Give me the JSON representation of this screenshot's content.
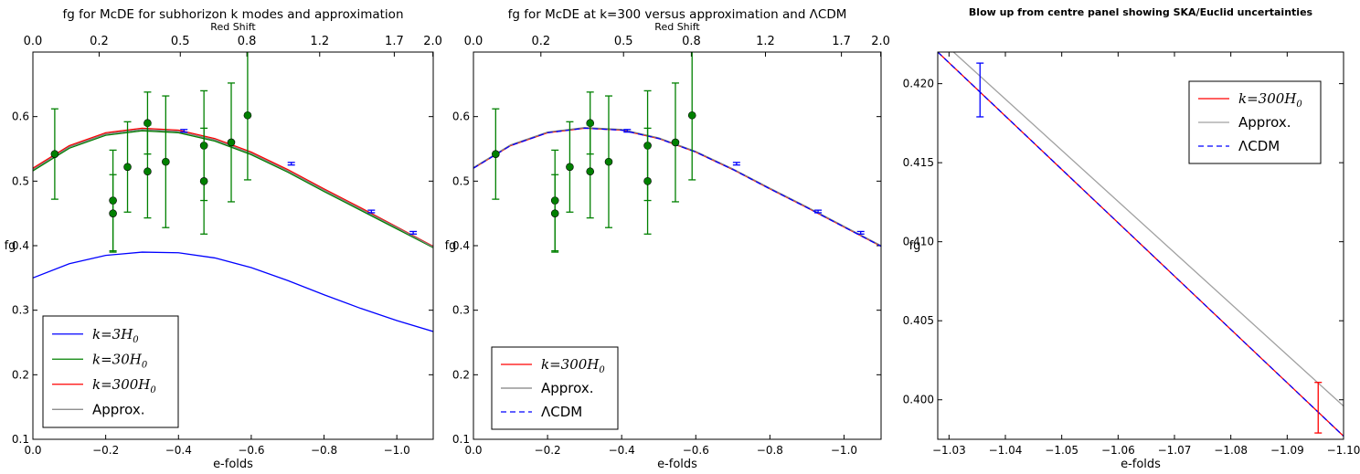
{
  "chart_data": [
    {
      "type": "line",
      "title": "fg for McDE for subhorizon k modes and approximation",
      "top_axis_label": "Red Shift",
      "top_ticks": [
        {
          "label": "0.0",
          "efold": 0.0
        },
        {
          "label": "0.2",
          "efold": -0.182
        },
        {
          "label": "0.5",
          "efold": -0.405
        },
        {
          "label": "0.8",
          "efold": -0.588
        },
        {
          "label": "1.2",
          "efold": -0.788
        },
        {
          "label": "1.7",
          "efold": -0.993
        },
        {
          "label": "2.0",
          "efold": -1.099
        }
      ],
      "xlabel": "e-folds",
      "ylabel": "fg",
      "xlim": [
        0.0,
        -1.1
      ],
      "ylim": [
        0.1,
        0.7
      ],
      "x_ticks": [
        "0.0",
        "−0.2",
        "−0.4",
        "−0.6",
        "−0.8",
        "−1.0"
      ],
      "x_tick_values": [
        0.0,
        -0.2,
        -0.4,
        -0.6,
        -0.8,
        -1.0
      ],
      "y_ticks": [
        "0.1",
        "0.2",
        "0.3",
        "0.4",
        "0.5",
        "0.6"
      ],
      "y_tick_values": [
        0.1,
        0.2,
        0.3,
        0.4,
        0.5,
        0.6
      ],
      "legend_location": "lower-left",
      "series": [
        {
          "name": "k=3H0",
          "legend_math": true,
          "legend_main": "k=3H",
          "legend_sub": "0",
          "color": "#0000ff",
          "dash": "solid",
          "points": [
            [
              0.0,
              0.35
            ],
            [
              -0.1,
              0.372
            ],
            [
              -0.2,
              0.385
            ],
            [
              -0.3,
              0.39
            ],
            [
              -0.4,
              0.389
            ],
            [
              -0.5,
              0.381
            ],
            [
              -0.6,
              0.366
            ],
            [
              -0.7,
              0.346
            ],
            [
              -0.8,
              0.324
            ],
            [
              -0.9,
              0.303
            ],
            [
              -1.0,
              0.284
            ],
            [
              -1.1,
              0.267
            ]
          ]
        },
        {
          "name": "k=30H0",
          "legend_math": true,
          "legend_main": "k=30H",
          "legend_sub": "0",
          "color": "#008000",
          "dash": "solid",
          "points": [
            [
              0.0,
              0.516
            ],
            [
              -0.1,
              0.551
            ],
            [
              -0.2,
              0.571
            ],
            [
              -0.3,
              0.578
            ],
            [
              -0.4,
              0.575
            ],
            [
              -0.5,
              0.562
            ],
            [
              -0.6,
              0.541
            ],
            [
              -0.7,
              0.514
            ],
            [
              -0.8,
              0.484
            ],
            [
              -0.9,
              0.455
            ],
            [
              -1.0,
              0.426
            ],
            [
              -1.1,
              0.397
            ]
          ]
        },
        {
          "name": "k=300H0",
          "legend_math": true,
          "legend_main": "k=300H",
          "legend_sub": "0",
          "color": "#ff0000",
          "dash": "solid",
          "points": [
            [
              0.0,
              0.52
            ],
            [
              -0.1,
              0.555
            ],
            [
              -0.2,
              0.575
            ],
            [
              -0.3,
              0.582
            ],
            [
              -0.4,
              0.579
            ],
            [
              -0.5,
              0.566
            ],
            [
              -0.6,
              0.545
            ],
            [
              -0.7,
              0.518
            ],
            [
              -0.8,
              0.488
            ],
            [
              -0.9,
              0.459
            ],
            [
              -1.0,
              0.429
            ],
            [
              -1.1,
              0.399
            ]
          ]
        },
        {
          "name": "Approx.",
          "legend_math": false,
          "legend_main": "Approx.",
          "legend_sub": "",
          "color": "#808080",
          "dash": "solid",
          "points": [
            [
              0.0,
              0.518
            ],
            [
              -0.1,
              0.553
            ],
            [
              -0.2,
              0.573
            ],
            [
              -0.3,
              0.58
            ],
            [
              -0.4,
              0.577
            ],
            [
              -0.5,
              0.564
            ],
            [
              -0.6,
              0.543
            ],
            [
              -0.7,
              0.516
            ],
            [
              -0.8,
              0.486
            ],
            [
              -0.9,
              0.457
            ],
            [
              -1.0,
              0.428
            ],
            [
              -1.1,
              0.398
            ]
          ]
        }
      ],
      "observations": [
        {
          "x": -0.06,
          "y": 0.542,
          "err": 0.07
        },
        {
          "x": -0.22,
          "y": 0.47,
          "err": 0.078
        },
        {
          "x": -0.22,
          "y": 0.45,
          "err": 0.06
        },
        {
          "x": -0.26,
          "y": 0.522,
          "err": 0.07
        },
        {
          "x": -0.315,
          "y": 0.59,
          "err": 0.048
        },
        {
          "x": -0.315,
          "y": 0.515,
          "err": 0.072
        },
        {
          "x": -0.365,
          "y": 0.53,
          "err": 0.102
        },
        {
          "x": -0.47,
          "y": 0.555,
          "err": 0.085
        },
        {
          "x": -0.47,
          "y": 0.5,
          "err": 0.082
        },
        {
          "x": -0.545,
          "y": 0.56,
          "err": 0.092
        },
        {
          "x": -0.59,
          "y": 0.602,
          "err": 0.1
        }
      ],
      "forecast_errors": [
        {
          "x": -0.415,
          "y": 0.578,
          "err": 0.002
        },
        {
          "x": -0.71,
          "y": 0.527,
          "err": 0.002
        },
        {
          "x": -0.93,
          "y": 0.453,
          "err": 0.002
        },
        {
          "x": -1.045,
          "y": 0.42,
          "err": 0.002
        }
      ],
      "observation_color": "#008000",
      "forecast_color": "#0000ff"
    },
    {
      "type": "line",
      "title": "fg for McDE at k=300 versus approximation and ΛCDM",
      "top_axis_label": "Red Shift",
      "top_ticks": [
        {
          "label": "0.0",
          "efold": 0.0
        },
        {
          "label": "0.2",
          "efold": -0.182
        },
        {
          "label": "0.5",
          "efold": -0.405
        },
        {
          "label": "0.8",
          "efold": -0.588
        },
        {
          "label": "1.2",
          "efold": -0.788
        },
        {
          "label": "1.7",
          "efold": -0.993
        },
        {
          "label": "2.0",
          "efold": -1.099
        }
      ],
      "xlabel": "e-folds",
      "ylabel": "fg",
      "xlim": [
        0.0,
        -1.1
      ],
      "ylim": [
        0.1,
        0.7
      ],
      "x_ticks": [
        "0.0",
        "−0.2",
        "−0.4",
        "−0.6",
        "−0.8",
        "−1.0"
      ],
      "x_tick_values": [
        0.0,
        -0.2,
        -0.4,
        -0.6,
        -0.8,
        -1.0
      ],
      "y_ticks": [
        "0.1",
        "0.2",
        "0.3",
        "0.4",
        "0.5",
        "0.6"
      ],
      "y_tick_values": [
        0.1,
        0.2,
        0.3,
        0.4,
        0.5,
        0.6
      ],
      "legend_location": "lower-left",
      "series": [
        {
          "name": "k=300H0",
          "legend_math": true,
          "legend_main": "k=300H",
          "legend_sub": "0",
          "color": "#ff0000",
          "dash": "solid",
          "points": [
            [
              0.0,
              0.52
            ],
            [
              -0.1,
              0.555
            ],
            [
              -0.2,
              0.575
            ],
            [
              -0.3,
              0.582
            ],
            [
              -0.4,
              0.579
            ],
            [
              -0.5,
              0.566
            ],
            [
              -0.6,
              0.545
            ],
            [
              -0.7,
              0.518
            ],
            [
              -0.8,
              0.488
            ],
            [
              -0.9,
              0.459
            ],
            [
              -1.0,
              0.429
            ],
            [
              -1.1,
              0.399
            ]
          ]
        },
        {
          "name": "Approx.",
          "legend_math": false,
          "legend_main": "Approx.",
          "legend_sub": "",
          "color": "#808080",
          "dash": "solid",
          "points": [
            [
              0.0,
              0.521
            ],
            [
              -0.1,
              0.556
            ],
            [
              -0.2,
              0.576
            ],
            [
              -0.3,
              0.583
            ],
            [
              -0.4,
              0.58
            ],
            [
              -0.5,
              0.567
            ],
            [
              -0.6,
              0.546
            ],
            [
              -0.7,
              0.519
            ],
            [
              -0.8,
              0.489
            ],
            [
              -0.9,
              0.46
            ],
            [
              -1.0,
              0.43
            ],
            [
              -1.1,
              0.4
            ]
          ]
        },
        {
          "name": "ΛCDM",
          "legend_math": false,
          "legend_main": "ΛCDM",
          "legend_sub": "",
          "color": "#0000ff",
          "dash": "dashed",
          "points": [
            [
              0.0,
              0.52
            ],
            [
              -0.1,
              0.555
            ],
            [
              -0.2,
              0.575
            ],
            [
              -0.3,
              0.582
            ],
            [
              -0.4,
              0.579
            ],
            [
              -0.5,
              0.566
            ],
            [
              -0.6,
              0.545
            ],
            [
              -0.7,
              0.518
            ],
            [
              -0.8,
              0.488
            ],
            [
              -0.9,
              0.459
            ],
            [
              -1.0,
              0.429
            ],
            [
              -1.1,
              0.399
            ]
          ]
        }
      ],
      "observations": [
        {
          "x": -0.06,
          "y": 0.542,
          "err": 0.07
        },
        {
          "x": -0.22,
          "y": 0.47,
          "err": 0.078
        },
        {
          "x": -0.22,
          "y": 0.45,
          "err": 0.06
        },
        {
          "x": -0.26,
          "y": 0.522,
          "err": 0.07
        },
        {
          "x": -0.315,
          "y": 0.59,
          "err": 0.048
        },
        {
          "x": -0.315,
          "y": 0.515,
          "err": 0.072
        },
        {
          "x": -0.365,
          "y": 0.53,
          "err": 0.102
        },
        {
          "x": -0.47,
          "y": 0.555,
          "err": 0.085
        },
        {
          "x": -0.47,
          "y": 0.5,
          "err": 0.082
        },
        {
          "x": -0.545,
          "y": 0.56,
          "err": 0.092
        },
        {
          "x": -0.59,
          "y": 0.602,
          "err": 0.1
        }
      ],
      "forecast_errors": [
        {
          "x": -0.415,
          "y": 0.578,
          "err": 0.002
        },
        {
          "x": -0.71,
          "y": 0.527,
          "err": 0.002
        },
        {
          "x": -0.93,
          "y": 0.453,
          "err": 0.002
        },
        {
          "x": -1.045,
          "y": 0.42,
          "err": 0.002
        }
      ],
      "observation_color": "#008000",
      "forecast_color": "#0000ff"
    },
    {
      "type": "line",
      "title": "Blow up from centre panel showing SKA/Euclid uncertainties",
      "xlabel": "e-folds",
      "ylabel": "fg",
      "xlim": [
        -1.028,
        -1.1
      ],
      "ylim": [
        0.3975,
        0.422
      ],
      "x_ticks": [
        "−1.03",
        "−1.04",
        "−1.05",
        "−1.06",
        "−1.07",
        "−1.08",
        "−1.09",
        "−1.10"
      ],
      "x_tick_values": [
        -1.03,
        -1.04,
        -1.05,
        -1.06,
        -1.07,
        -1.08,
        -1.09,
        -1.1
      ],
      "y_ticks": [
        "0.400",
        "0.405",
        "0.410",
        "0.415",
        "0.420"
      ],
      "y_tick_values": [
        0.4,
        0.405,
        0.41,
        0.415,
        0.42
      ],
      "legend_location": "upper-right",
      "series": [
        {
          "name": "k=300H0",
          "legend_math": true,
          "legend_main": "k=300H",
          "legend_sub": "0",
          "color": "#ff0000",
          "dash": "solid",
          "points": [
            [
              -1.028,
              0.422
            ],
            [
              -1.1,
              0.3977
            ]
          ]
        },
        {
          "name": "Approx.",
          "legend_math": false,
          "legend_main": "Approx.",
          "legend_sub": "",
          "color": "#a0a0a0",
          "dash": "solid",
          "points": [
            [
              -1.0308,
              0.422
            ],
            [
              -1.1,
              0.3996
            ]
          ]
        },
        {
          "name": "ΛCDM",
          "legend_math": false,
          "legend_main": "ΛCDM",
          "legend_sub": "",
          "color": "#0000ff",
          "dash": "dashed",
          "points": [
            [
              -1.028,
              0.422
            ],
            [
              -1.1,
              0.3977
            ]
          ]
        }
      ],
      "error_bars": [
        {
          "x": -1.0355,
          "y": 0.4196,
          "err": 0.0017,
          "color": "#0000ff"
        },
        {
          "x": -1.0955,
          "y": 0.3995,
          "err": 0.0016,
          "color": "#ff0000"
        }
      ]
    }
  ]
}
